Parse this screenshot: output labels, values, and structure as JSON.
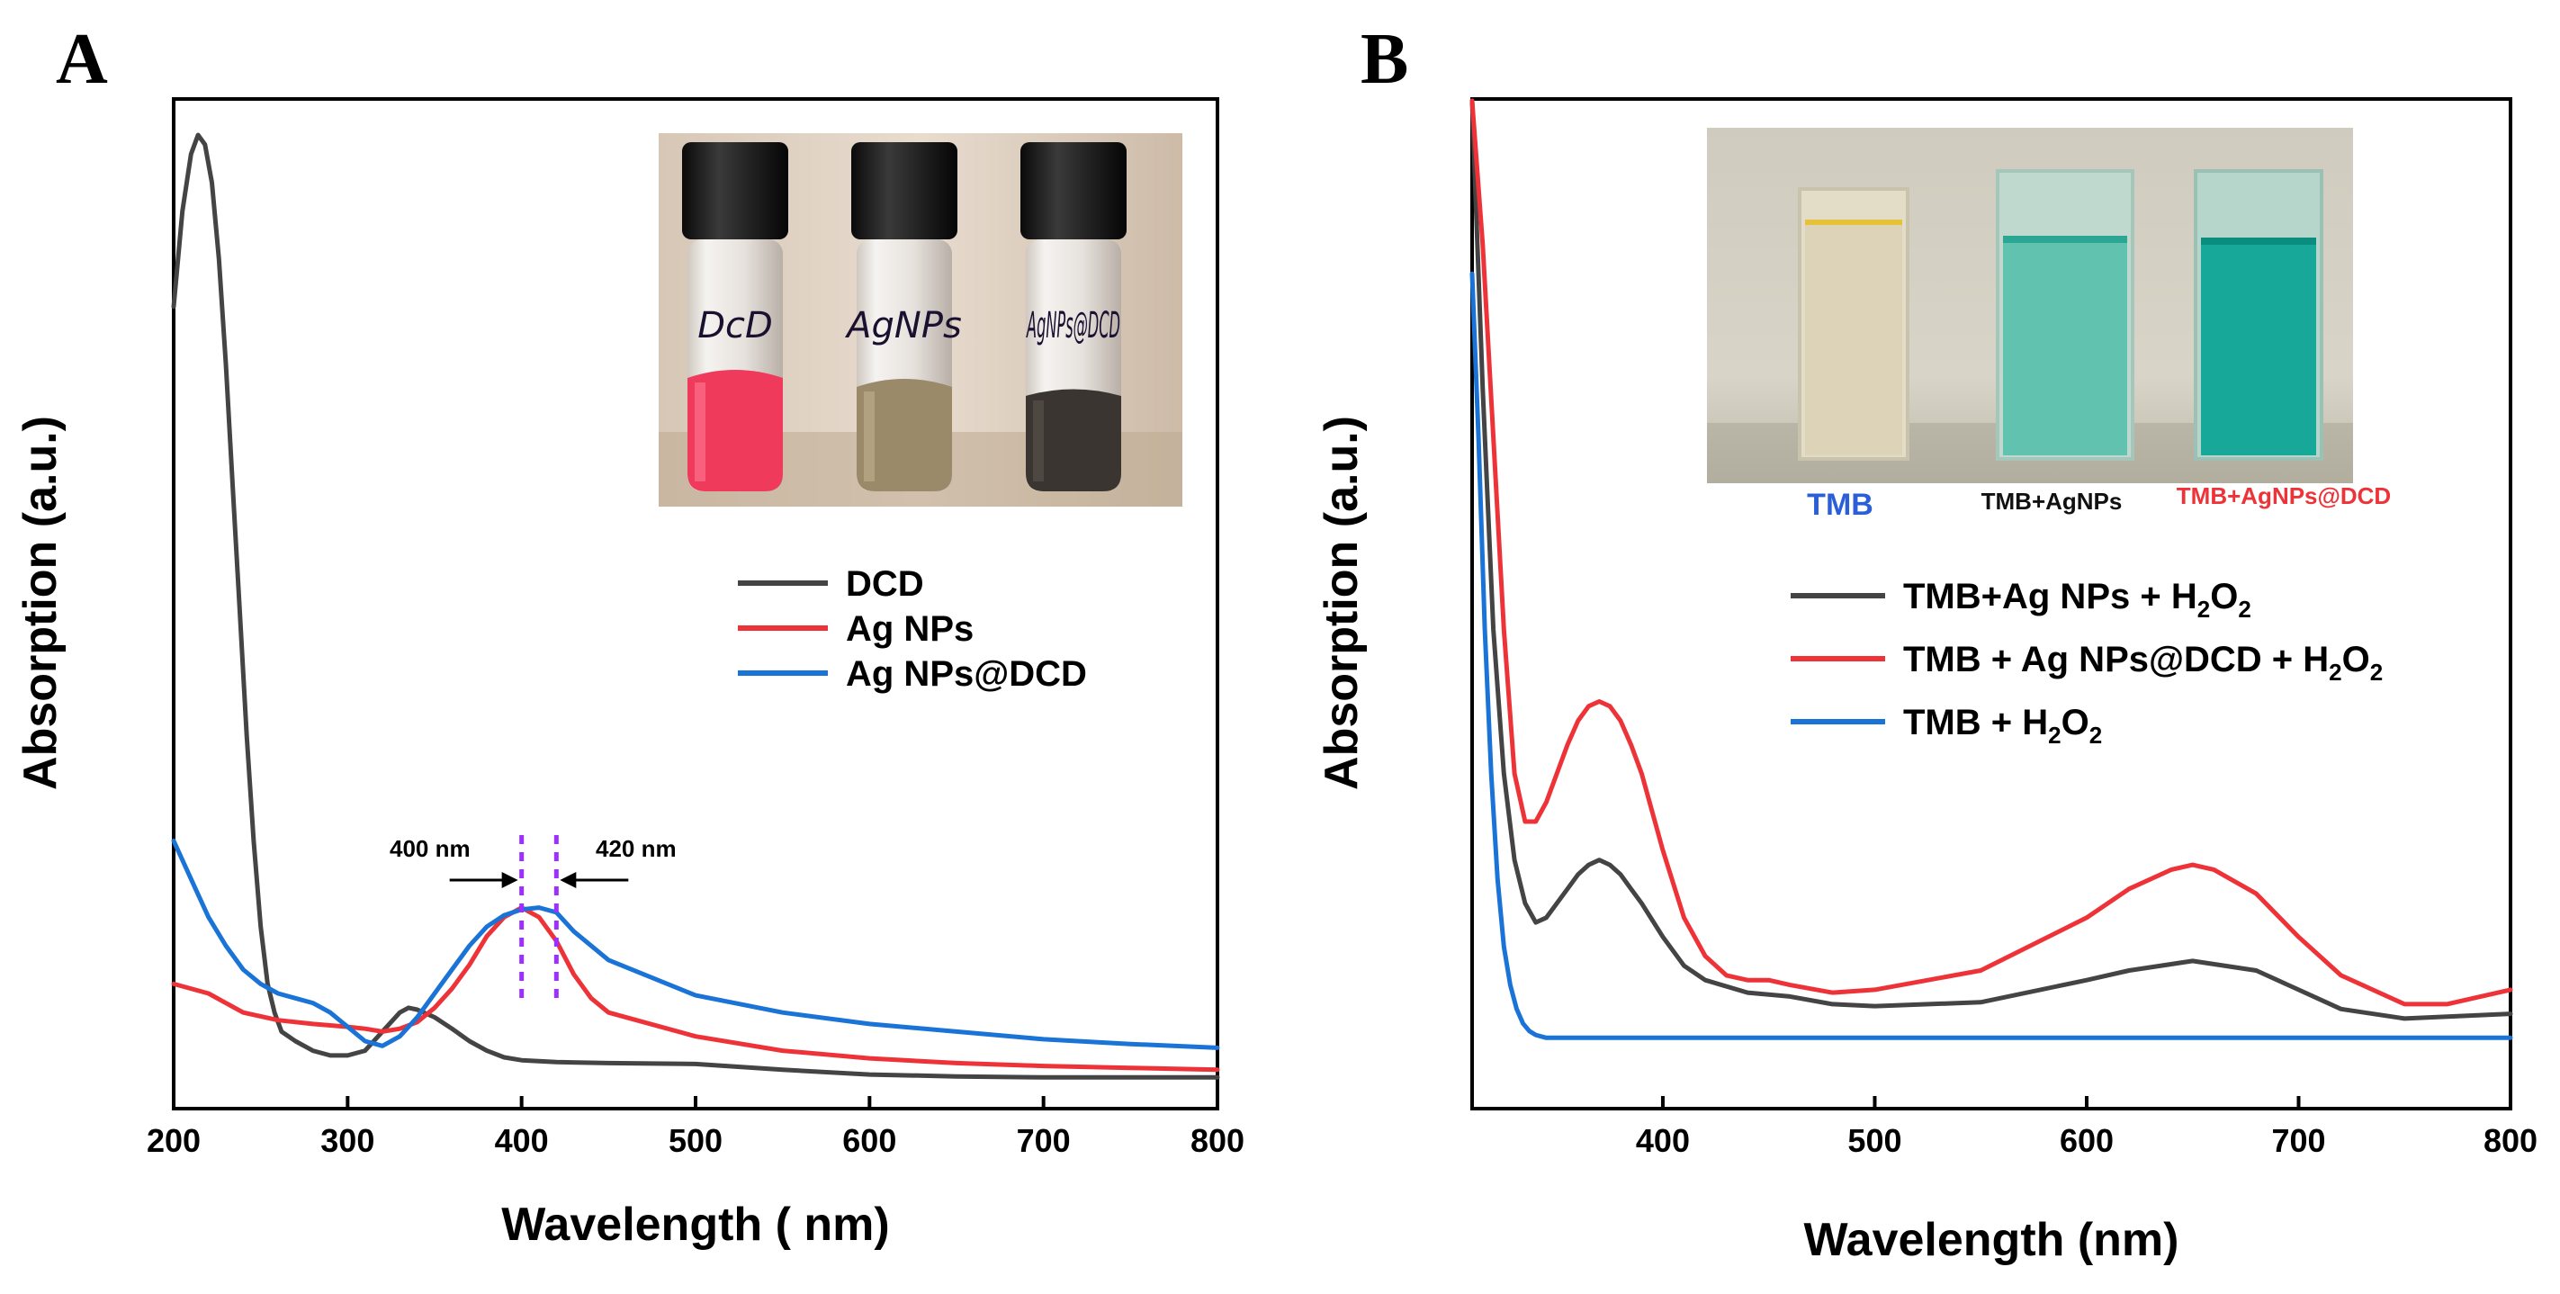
{
  "colors": {
    "dark": "#444444",
    "red": "#ee3338",
    "blue": "#1a73d6",
    "purple": "#9b30ff"
  },
  "chart_data": [
    {
      "type": "line",
      "panel": "A",
      "xlabel": "Wavelength ( nm)",
      "ylabel": "Absorption (a.u.)",
      "xlim": [
        200,
        800
      ],
      "ylim": [
        0,
        1
      ],
      "xticks": [
        200,
        300,
        400,
        500,
        600,
        700,
        800
      ],
      "legend_position": "right",
      "series": [
        {
          "name": "DCD",
          "color": "#444444",
          "x": [
            200,
            205,
            210,
            214,
            218,
            222,
            226,
            230,
            234,
            238,
            242,
            246,
            250,
            254,
            258,
            262,
            266,
            270,
            280,
            290,
            300,
            310,
            320,
            330,
            335,
            340,
            350,
            360,
            370,
            380,
            390,
            400,
            410,
            420,
            450,
            500,
            550,
            600,
            650,
            700,
            750,
            800
          ],
          "y": [
            0.82,
            0.92,
            0.98,
            1.0,
            0.99,
            0.95,
            0.87,
            0.76,
            0.63,
            0.5,
            0.37,
            0.26,
            0.17,
            0.11,
            0.08,
            0.06,
            0.055,
            0.05,
            0.04,
            0.035,
            0.035,
            0.04,
            0.06,
            0.08,
            0.085,
            0.083,
            0.075,
            0.063,
            0.05,
            0.04,
            0.033,
            0.03,
            0.029,
            0.028,
            0.027,
            0.026,
            0.02,
            0.015,
            0.013,
            0.012,
            0.012,
            0.012
          ]
        },
        {
          "name": "Ag NPs",
          "color": "#ee3338",
          "x": [
            200,
            220,
            240,
            260,
            280,
            300,
            310,
            320,
            330,
            340,
            350,
            360,
            370,
            380,
            390,
            395,
            400,
            405,
            410,
            420,
            430,
            440,
            450,
            500,
            550,
            600,
            650,
            700,
            750,
            800
          ],
          "y": [
            0.11,
            0.1,
            0.08,
            0.072,
            0.068,
            0.065,
            0.063,
            0.06,
            0.063,
            0.07,
            0.085,
            0.105,
            0.13,
            0.16,
            0.18,
            0.185,
            0.19,
            0.185,
            0.18,
            0.155,
            0.12,
            0.095,
            0.08,
            0.055,
            0.04,
            0.032,
            0.027,
            0.024,
            0.022,
            0.02
          ]
        },
        {
          "name": "Ag NPs@DCD",
          "color": "#1a73d6",
          "x": [
            200,
            210,
            220,
            230,
            240,
            250,
            260,
            270,
            280,
            290,
            300,
            310,
            320,
            330,
            340,
            350,
            360,
            370,
            380,
            390,
            400,
            410,
            420,
            430,
            450,
            500,
            550,
            600,
            650,
            700,
            750,
            800
          ],
          "y": [
            0.26,
            0.22,
            0.18,
            0.15,
            0.125,
            0.11,
            0.1,
            0.095,
            0.09,
            0.08,
            0.065,
            0.05,
            0.045,
            0.055,
            0.075,
            0.1,
            0.125,
            0.15,
            0.17,
            0.182,
            0.188,
            0.19,
            0.185,
            0.165,
            0.135,
            0.098,
            0.08,
            0.068,
            0.06,
            0.052,
            0.047,
            0.043
          ]
        }
      ],
      "annotations": {
        "left_peak": "400 nm",
        "right_peak": "420 nm",
        "left_x": 400,
        "right_x": 420
      },
      "inset": {
        "vials": [
          "DCD",
          "AgNPs",
          "AgNPs@DCD"
        ],
        "vial_labels_shown": [
          "DcD",
          "AgNPs",
          "AgNPs@DCD"
        ]
      }
    },
    {
      "type": "line",
      "panel": "B",
      "xlabel": "Wavelength (nm)",
      "ylabel": "Absorption (a.u.)",
      "xlim": [
        310,
        800
      ],
      "ylim": [
        0,
        1
      ],
      "xticks": [
        400,
        500,
        600,
        700,
        800
      ],
      "legend_position": "right",
      "series": [
        {
          "name": "TMB+Ag NPs + H2O2",
          "color": "#444444",
          "x": [
            310,
            315,
            320,
            325,
            330,
            335,
            340,
            345,
            350,
            355,
            360,
            365,
            370,
            375,
            380,
            385,
            390,
            400,
            410,
            420,
            440,
            460,
            480,
            500,
            550,
            600,
            620,
            650,
            680,
            700,
            720,
            750,
            800
          ],
          "y": [
            1.0,
            0.7,
            0.45,
            0.3,
            0.21,
            0.165,
            0.145,
            0.15,
            0.165,
            0.18,
            0.195,
            0.205,
            0.21,
            0.205,
            0.195,
            0.18,
            0.165,
            0.13,
            0.1,
            0.085,
            0.072,
            0.068,
            0.06,
            0.058,
            0.062,
            0.085,
            0.095,
            0.105,
            0.095,
            0.075,
            0.055,
            0.045,
            0.05
          ]
        },
        {
          "name": "TMB + Ag NPs@DCD + H2O2",
          "color": "#ee3338",
          "x": [
            310,
            315,
            320,
            325,
            330,
            335,
            340,
            345,
            350,
            355,
            360,
            365,
            370,
            375,
            380,
            385,
            390,
            400,
            410,
            420,
            430,
            440,
            450,
            460,
            480,
            500,
            550,
            600,
            620,
            640,
            650,
            660,
            680,
            700,
            720,
            750,
            770,
            800
          ],
          "y": [
            1.0,
            0.85,
            0.65,
            0.45,
            0.3,
            0.25,
            0.25,
            0.27,
            0.3,
            0.33,
            0.355,
            0.37,
            0.375,
            0.37,
            0.355,
            0.33,
            0.3,
            0.22,
            0.15,
            0.11,
            0.09,
            0.085,
            0.085,
            0.08,
            0.072,
            0.075,
            0.095,
            0.15,
            0.18,
            0.2,
            0.205,
            0.2,
            0.175,
            0.13,
            0.09,
            0.06,
            0.06,
            0.075
          ]
        },
        {
          "name": "TMB + H2O2",
          "color": "#1a73d6",
          "x": [
            310,
            313,
            316,
            319,
            322,
            325,
            328,
            331,
            334,
            337,
            340,
            345,
            350,
            400,
            500,
            600,
            700,
            800
          ],
          "y": [
            0.82,
            0.65,
            0.45,
            0.3,
            0.19,
            0.12,
            0.08,
            0.055,
            0.04,
            0.032,
            0.028,
            0.025,
            0.025,
            0.025,
            0.025,
            0.025,
            0.025,
            0.025
          ]
        }
      ],
      "inset": {
        "labels": [
          "TMB",
          "TMB+AgNPs",
          "TMB+AgNPs@DCD"
        ]
      }
    }
  ],
  "panels": {
    "A": {
      "letter": "A"
    },
    "B": {
      "letter": "B"
    }
  },
  "legend": {
    "A": [
      "DCD",
      "Ag NPs",
      "Ag NPs@DCD"
    ],
    "B": [
      {
        "main": "TMB+Ag NPs + H",
        "sub1": "2",
        "mid": "O",
        "sub2": "2"
      },
      {
        "main": "TMB + Ag NPs@DCD + H",
        "sub1": "2",
        "mid": "O",
        "sub2": "2"
      },
      {
        "main": "TMB + H",
        "sub1": "2",
        "mid": "O",
        "sub2": "2"
      }
    ]
  }
}
